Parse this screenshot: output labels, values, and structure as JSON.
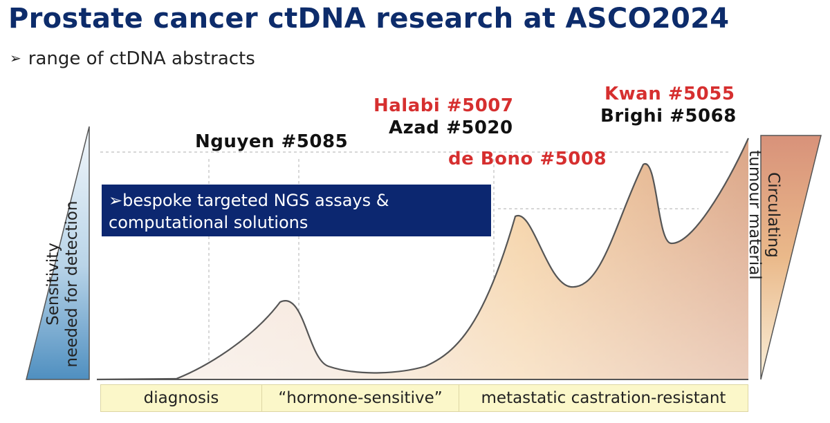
{
  "title": "Prostate cancer ctDNA research at ASCO2024",
  "subtitle": {
    "arrow": "➢",
    "text": "range of ctDNA abstracts"
  },
  "abstracts": {
    "nguyen": "Nguyen #5085",
    "halabi": "Halabi #5007",
    "azad": "Azad #5020",
    "debono": "de Bono #5008",
    "kwan": "Kwan #5055",
    "brighi": "Brighi #5068"
  },
  "highlight_colors": {
    "red": "#d62f2f",
    "black": "#111111"
  },
  "callout": {
    "line1": "➢bespoke targeted NGS assays &",
    "line2": "computational solutions"
  },
  "left_wedge": {
    "line1": "Sensitivity",
    "line2": "needed for detection"
  },
  "right_wedge": {
    "line1": "Circulating",
    "line2": "tumour material"
  },
  "stages": [
    "diagnosis",
    "“hormone-sensitive”",
    "metastatic castration-resistant"
  ]
}
